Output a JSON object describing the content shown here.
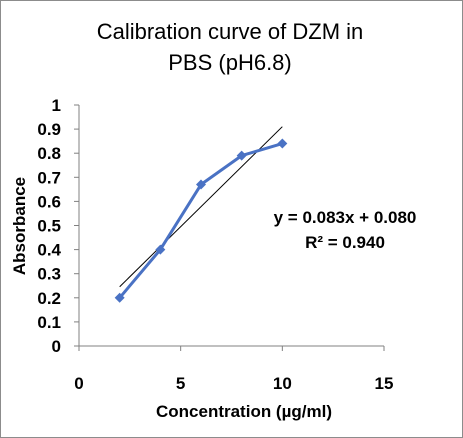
{
  "chart_data": {
    "type": "scatter",
    "title_lines": [
      "Calibration curve of DZM in",
      "PBS (pH6.8)"
    ],
    "xlabel": "Concentration (µg/ml)",
    "ylabel": "Absorbance",
    "xlim": [
      0,
      15
    ],
    "ylim": [
      0,
      1
    ],
    "x_ticks": [
      0,
      5,
      10,
      15
    ],
    "y_ticks": [
      0,
      0.1,
      0.2,
      0.3,
      0.4,
      0.5,
      0.6,
      0.7,
      0.8,
      0.9,
      1
    ],
    "grid": false,
    "series": [
      {
        "x": [
          2,
          4,
          6,
          8,
          10
        ],
        "y": [
          0.2,
          0.4,
          0.67,
          0.79,
          0.84
        ],
        "marker": "diamond",
        "connected": true,
        "color": "#4a72c4"
      }
    ],
    "trendline": {
      "slope": 0.083,
      "intercept": 0.08,
      "x_range": [
        2,
        10
      ],
      "color": "#000000"
    },
    "annotations": [
      "y = 0.083x + 0.080",
      "R² = 0.940"
    ]
  }
}
